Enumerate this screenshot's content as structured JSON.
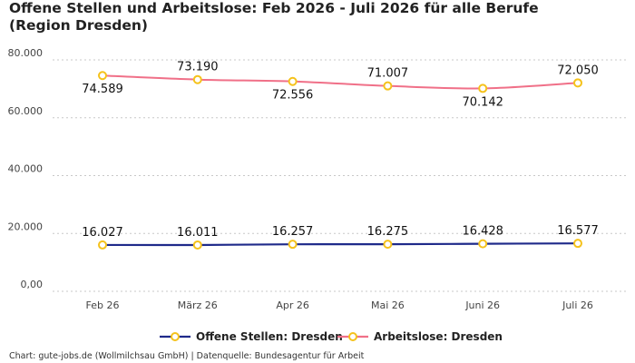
{
  "title": "Offene Stellen und Arbeitslose: Feb 2026 - Juli 2026 für alle Berufe (Region Dresden)",
  "footer": "Chart: gute-jobs.de (Wollmilchsau GmbH) | Datenquelle: Bundesagentur für Arbeit",
  "colors": {
    "offene": "#1f2a8a",
    "arbeitslose": "#f07088",
    "marker_stroke": "#f5c21b",
    "marker_fill": "#ffffff",
    "grid": "#c8c8c8"
  },
  "chart_data": {
    "type": "line",
    "title": "Offene Stellen und Arbeitslose: Feb 2026 - Juli 2026 für alle Berufe (Region Dresden)",
    "categories": [
      "Feb 26",
      "März 26",
      "Apr 26",
      "Mai 26",
      "Juni 26",
      "Juli 26"
    ],
    "series": [
      {
        "name": "Offene Stellen: Dresden",
        "values": [
          16027,
          16011,
          16257,
          16275,
          16428,
          16577
        ],
        "labels": [
          "16.027",
          "16.011",
          "16.257",
          "16.275",
          "16.428",
          "16.577"
        ]
      },
      {
        "name": "Arbeitslose: Dresden",
        "values": [
          74589,
          73190,
          72556,
          71007,
          70142,
          72050
        ],
        "labels": [
          "74.589",
          "73.190",
          "72.556",
          "71.007",
          "70.142",
          "72.050"
        ]
      }
    ],
    "y_ticks": [
      {
        "value": 80000,
        "label": "80.000"
      },
      {
        "value": 60000,
        "label": "60.000"
      },
      {
        "value": 40000,
        "label": "40.000"
      },
      {
        "value": 20000,
        "label": "20.000"
      },
      {
        "value": 0,
        "label": "0,00"
      }
    ],
    "ylim": [
      0,
      80000
    ],
    "grid": true,
    "legend": "bottom-center",
    "xlabel": "",
    "ylabel": ""
  }
}
